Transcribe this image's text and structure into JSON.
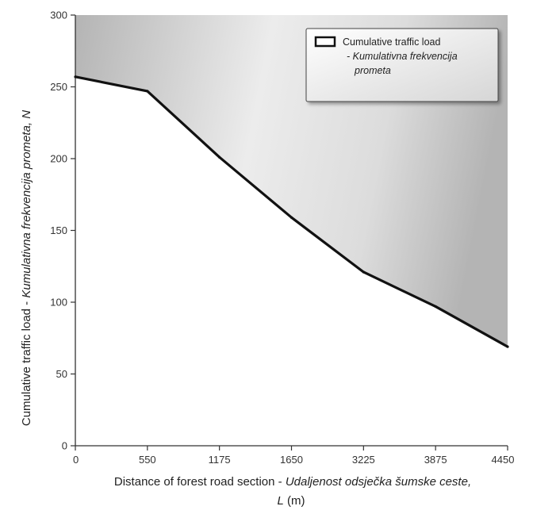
{
  "chart_data": {
    "type": "area",
    "categories": [
      "0",
      "550",
      "1175",
      "1650",
      "3225",
      "3875",
      "4450"
    ],
    "series": [
      {
        "name": "Cumulative traffic load - Kumulativna frekvencija prometa",
        "values": [
          257,
          247,
          201,
          159,
          121,
          97,
          69
        ]
      }
    ],
    "xlabel": {
      "main": "Distance of forest road section - ",
      "italic": "Udaljenost odsječka šumske ceste,",
      "unit_symbol": "L",
      "unit": " (m)"
    },
    "ylabel": {
      "main": "Cumulative traffic load - ",
      "italic": "Kumulativna frekvencija prometa, N"
    },
    "yticks": [
      0,
      50,
      100,
      150,
      200,
      250,
      300
    ],
    "ylim": [
      0,
      300
    ],
    "grid": false,
    "legend": {
      "position": "top-right",
      "line1": "Cumulative traffic load",
      "line2": "- Kumulativna frekvencija",
      "line3": "prometa"
    },
    "colors": {
      "line": "#111111",
      "shade_dark": "#b4b4b4",
      "shade_light": "#f7f7f7"
    }
  }
}
